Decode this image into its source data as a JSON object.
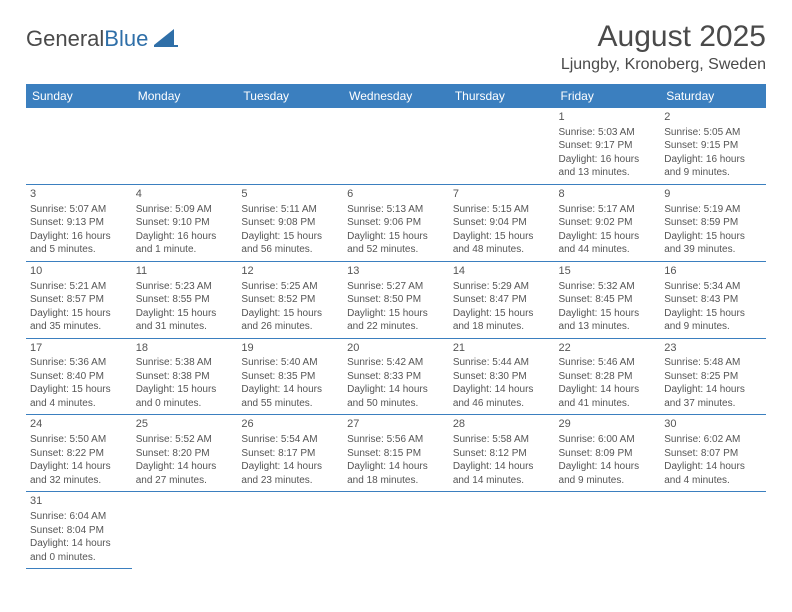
{
  "logo": {
    "dark": "General",
    "blue": "Blue"
  },
  "title": "August 2025",
  "location": "Ljungby, Kronoberg, Sweden",
  "header_bg": "#3b7fbf",
  "header_fg": "#ffffff",
  "border_color": "#3b7fbf",
  "text_color": "#555555",
  "daynames": [
    "Sunday",
    "Monday",
    "Tuesday",
    "Wednesday",
    "Thursday",
    "Friday",
    "Saturday"
  ],
  "weeks": [
    [
      null,
      null,
      null,
      null,
      null,
      {
        "n": "1",
        "sr": "Sunrise: 5:03 AM",
        "ss": "Sunset: 9:17 PM",
        "dl": "Daylight: 16 hours and 13 minutes."
      },
      {
        "n": "2",
        "sr": "Sunrise: 5:05 AM",
        "ss": "Sunset: 9:15 PM",
        "dl": "Daylight: 16 hours and 9 minutes."
      }
    ],
    [
      {
        "n": "3",
        "sr": "Sunrise: 5:07 AM",
        "ss": "Sunset: 9:13 PM",
        "dl": "Daylight: 16 hours and 5 minutes."
      },
      {
        "n": "4",
        "sr": "Sunrise: 5:09 AM",
        "ss": "Sunset: 9:10 PM",
        "dl": "Daylight: 16 hours and 1 minute."
      },
      {
        "n": "5",
        "sr": "Sunrise: 5:11 AM",
        "ss": "Sunset: 9:08 PM",
        "dl": "Daylight: 15 hours and 56 minutes."
      },
      {
        "n": "6",
        "sr": "Sunrise: 5:13 AM",
        "ss": "Sunset: 9:06 PM",
        "dl": "Daylight: 15 hours and 52 minutes."
      },
      {
        "n": "7",
        "sr": "Sunrise: 5:15 AM",
        "ss": "Sunset: 9:04 PM",
        "dl": "Daylight: 15 hours and 48 minutes."
      },
      {
        "n": "8",
        "sr": "Sunrise: 5:17 AM",
        "ss": "Sunset: 9:02 PM",
        "dl": "Daylight: 15 hours and 44 minutes."
      },
      {
        "n": "9",
        "sr": "Sunrise: 5:19 AM",
        "ss": "Sunset: 8:59 PM",
        "dl": "Daylight: 15 hours and 39 minutes."
      }
    ],
    [
      {
        "n": "10",
        "sr": "Sunrise: 5:21 AM",
        "ss": "Sunset: 8:57 PM",
        "dl": "Daylight: 15 hours and 35 minutes."
      },
      {
        "n": "11",
        "sr": "Sunrise: 5:23 AM",
        "ss": "Sunset: 8:55 PM",
        "dl": "Daylight: 15 hours and 31 minutes."
      },
      {
        "n": "12",
        "sr": "Sunrise: 5:25 AM",
        "ss": "Sunset: 8:52 PM",
        "dl": "Daylight: 15 hours and 26 minutes."
      },
      {
        "n": "13",
        "sr": "Sunrise: 5:27 AM",
        "ss": "Sunset: 8:50 PM",
        "dl": "Daylight: 15 hours and 22 minutes."
      },
      {
        "n": "14",
        "sr": "Sunrise: 5:29 AM",
        "ss": "Sunset: 8:47 PM",
        "dl": "Daylight: 15 hours and 18 minutes."
      },
      {
        "n": "15",
        "sr": "Sunrise: 5:32 AM",
        "ss": "Sunset: 8:45 PM",
        "dl": "Daylight: 15 hours and 13 minutes."
      },
      {
        "n": "16",
        "sr": "Sunrise: 5:34 AM",
        "ss": "Sunset: 8:43 PM",
        "dl": "Daylight: 15 hours and 9 minutes."
      }
    ],
    [
      {
        "n": "17",
        "sr": "Sunrise: 5:36 AM",
        "ss": "Sunset: 8:40 PM",
        "dl": "Daylight: 15 hours and 4 minutes."
      },
      {
        "n": "18",
        "sr": "Sunrise: 5:38 AM",
        "ss": "Sunset: 8:38 PM",
        "dl": "Daylight: 15 hours and 0 minutes."
      },
      {
        "n": "19",
        "sr": "Sunrise: 5:40 AM",
        "ss": "Sunset: 8:35 PM",
        "dl": "Daylight: 14 hours and 55 minutes."
      },
      {
        "n": "20",
        "sr": "Sunrise: 5:42 AM",
        "ss": "Sunset: 8:33 PM",
        "dl": "Daylight: 14 hours and 50 minutes."
      },
      {
        "n": "21",
        "sr": "Sunrise: 5:44 AM",
        "ss": "Sunset: 8:30 PM",
        "dl": "Daylight: 14 hours and 46 minutes."
      },
      {
        "n": "22",
        "sr": "Sunrise: 5:46 AM",
        "ss": "Sunset: 8:28 PM",
        "dl": "Daylight: 14 hours and 41 minutes."
      },
      {
        "n": "23",
        "sr": "Sunrise: 5:48 AM",
        "ss": "Sunset: 8:25 PM",
        "dl": "Daylight: 14 hours and 37 minutes."
      }
    ],
    [
      {
        "n": "24",
        "sr": "Sunrise: 5:50 AM",
        "ss": "Sunset: 8:22 PM",
        "dl": "Daylight: 14 hours and 32 minutes."
      },
      {
        "n": "25",
        "sr": "Sunrise: 5:52 AM",
        "ss": "Sunset: 8:20 PM",
        "dl": "Daylight: 14 hours and 27 minutes."
      },
      {
        "n": "26",
        "sr": "Sunrise: 5:54 AM",
        "ss": "Sunset: 8:17 PM",
        "dl": "Daylight: 14 hours and 23 minutes."
      },
      {
        "n": "27",
        "sr": "Sunrise: 5:56 AM",
        "ss": "Sunset: 8:15 PM",
        "dl": "Daylight: 14 hours and 18 minutes."
      },
      {
        "n": "28",
        "sr": "Sunrise: 5:58 AM",
        "ss": "Sunset: 8:12 PM",
        "dl": "Daylight: 14 hours and 14 minutes."
      },
      {
        "n": "29",
        "sr": "Sunrise: 6:00 AM",
        "ss": "Sunset: 8:09 PM",
        "dl": "Daylight: 14 hours and 9 minutes."
      },
      {
        "n": "30",
        "sr": "Sunrise: 6:02 AM",
        "ss": "Sunset: 8:07 PM",
        "dl": "Daylight: 14 hours and 4 minutes."
      }
    ],
    [
      {
        "n": "31",
        "sr": "Sunrise: 6:04 AM",
        "ss": "Sunset: 8:04 PM",
        "dl": "Daylight: 14 hours and 0 minutes."
      },
      null,
      null,
      null,
      null,
      null,
      null
    ]
  ]
}
